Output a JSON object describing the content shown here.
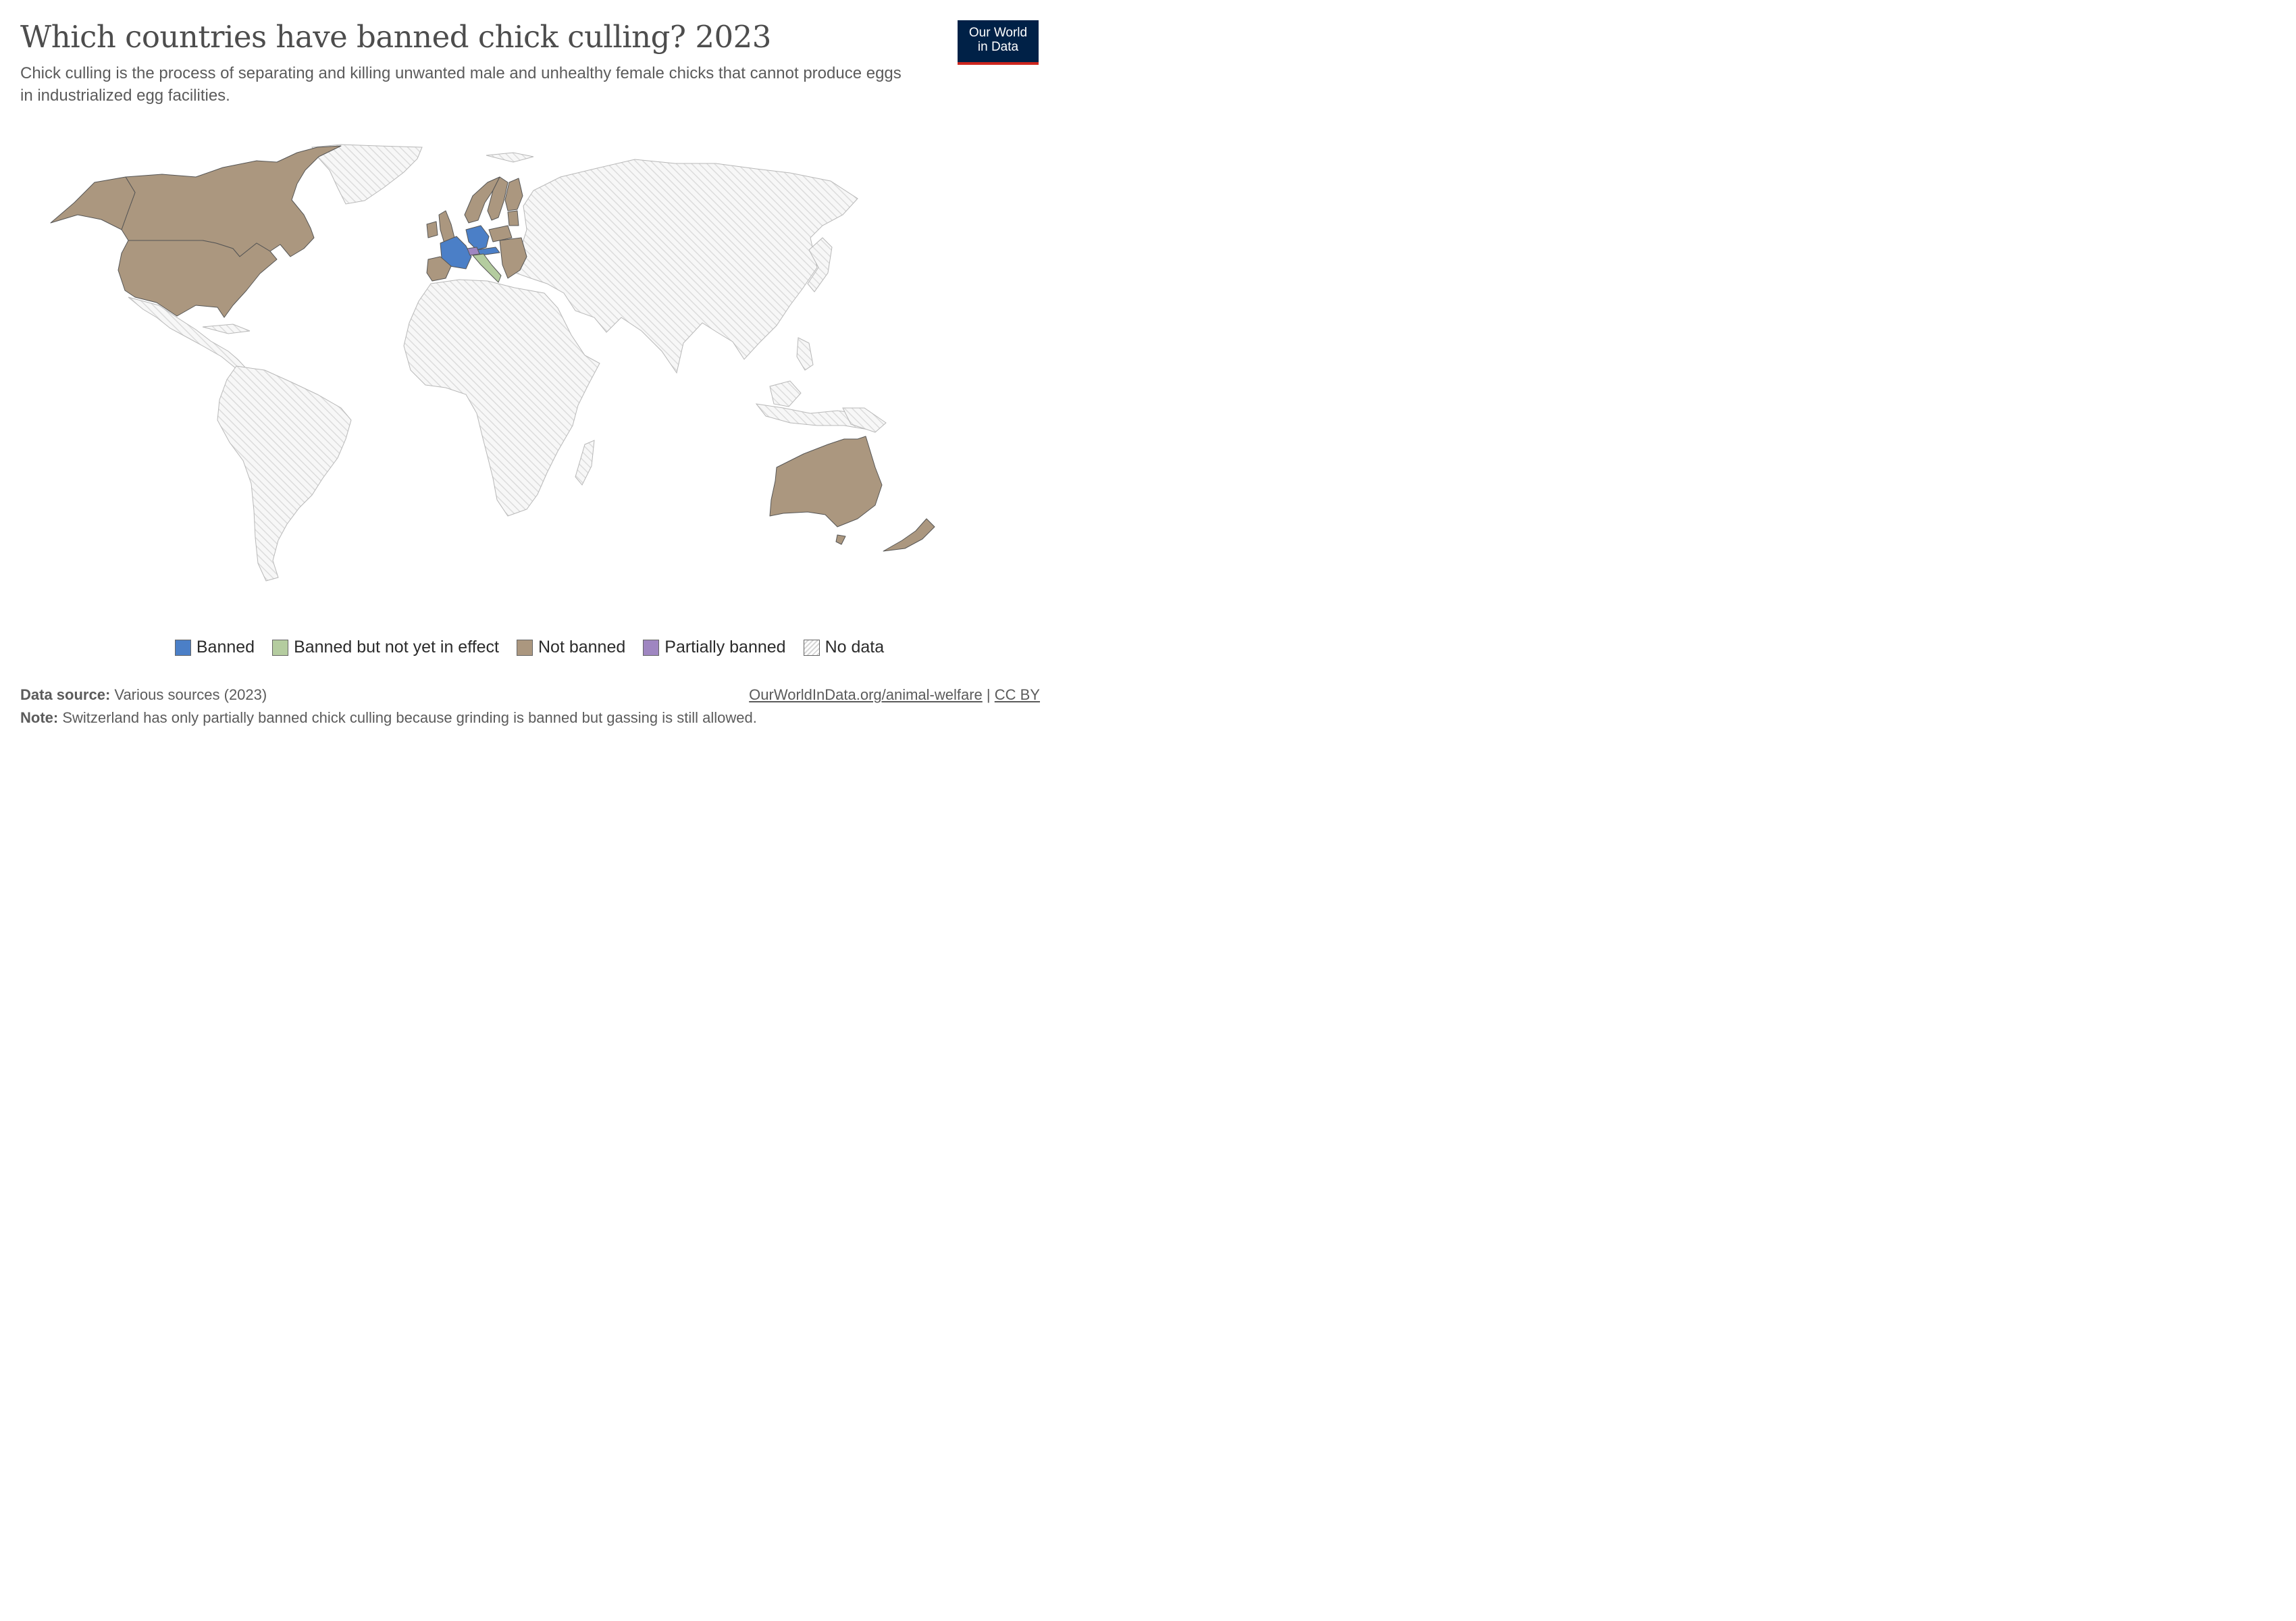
{
  "header": {
    "title": "Which countries have banned chick culling? 2023",
    "subtitle": "Chick culling is the process of separating and killing unwanted male and unhealthy female chicks that cannot produce eggs in industrialized egg facilities."
  },
  "logo": {
    "line1": "Our World",
    "line2": "in Data"
  },
  "colors": {
    "banned": "#4b7fc7",
    "banned_not_in_effect": "#b4cc9f",
    "not_banned": "#ab977f",
    "partially_banned": "#9f86c1",
    "no_data": "#f2f2f2",
    "border": "#555555"
  },
  "legend": {
    "items": [
      {
        "key": "banned",
        "label": "Banned"
      },
      {
        "key": "banned_not_in_effect",
        "label": "Banned but not yet in effect"
      },
      {
        "key": "not_banned",
        "label": "Not banned"
      },
      {
        "key": "partially_banned",
        "label": "Partially banned"
      },
      {
        "key": "no_data",
        "label": "No data"
      }
    ]
  },
  "map_data": {
    "Canada": "not_banned",
    "United States": "not_banned",
    "United Kingdom": "not_banned",
    "Ireland": "not_banned",
    "France": "banned",
    "Germany": "banned",
    "Austria": "banned",
    "Switzerland": "partially_banned",
    "Italy": "banned_not_in_effect",
    "Spain": "not_banned",
    "Portugal": "not_banned",
    "Norway": "not_banned",
    "Sweden": "not_banned",
    "Finland": "not_banned",
    "Poland": "not_banned",
    "Greece": "not_banned",
    "Australia": "not_banned",
    "New Zealand": "not_banned"
  },
  "footer": {
    "source_label": "Data source:",
    "source_text": "Various sources (2023)",
    "note_label": "Note:",
    "note_text": "Switzerland has only partially banned chick culling because grinding is banned but gassing is still allowed.",
    "link": "OurWorldInData.org/animal-welfare",
    "license": "CC BY"
  }
}
